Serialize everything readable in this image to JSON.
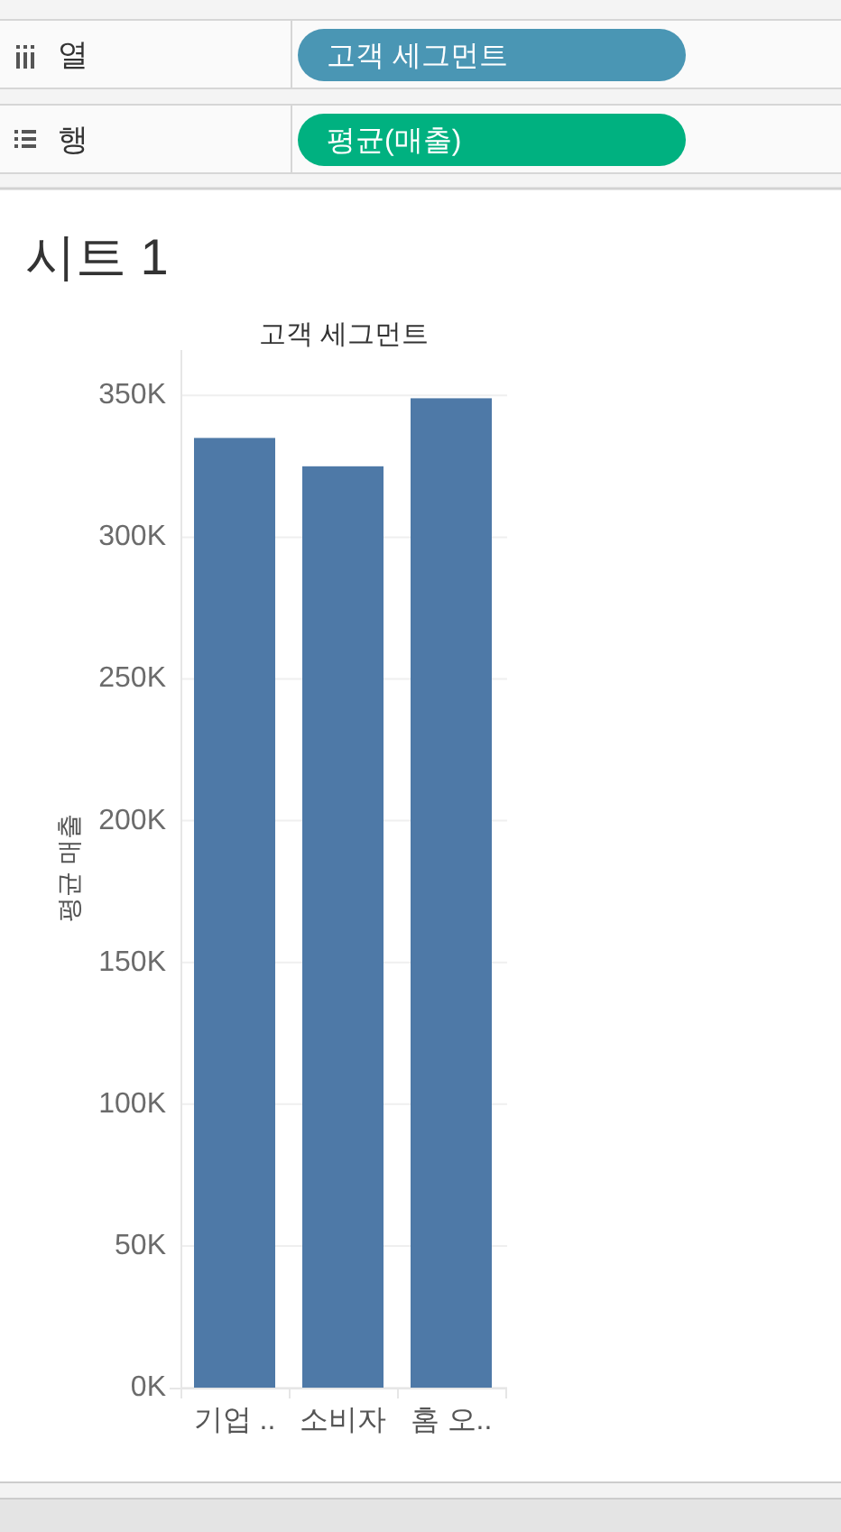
{
  "chart_data": {
    "type": "bar",
    "title": "시트 1",
    "xlabel": "고객 세그먼트",
    "ylabel": "평균 매출",
    "categories": [
      "기업 ..",
      "소비자",
      "홈 오.."
    ],
    "values": [
      335000,
      325000,
      349000
    ],
    "color": "#4e79a7",
    "ylim": [
      0,
      366000
    ],
    "yticks": [
      {
        "value": 0,
        "label": "0K"
      },
      {
        "value": 50000,
        "label": "50K"
      },
      {
        "value": 100000,
        "label": "100K"
      },
      {
        "value": 150000,
        "label": "150K"
      },
      {
        "value": 200000,
        "label": "200K"
      },
      {
        "value": 250000,
        "label": "250K"
      },
      {
        "value": 300000,
        "label": "300K"
      },
      {
        "value": 350000,
        "label": "350K"
      }
    ],
    "grid": "y",
    "annotations": [
      "열",
      "고객 세그먼트",
      "행",
      "평균(매출)"
    ]
  }
}
